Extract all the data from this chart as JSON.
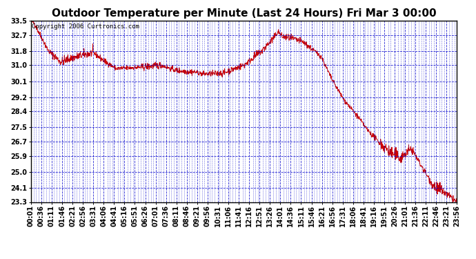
{
  "title": "Outdoor Temperature per Minute (Last 24 Hours) Fri Mar 3 00:00",
  "copyright": "Copyright 2006 Curtronics.com",
  "line_color": "#cc0000",
  "background_color": "#ffffff",
  "plot_bg_color": "#ffffff",
  "grid_color": "#0000cc",
  "border_color": "#000000",
  "y_ticks": [
    23.3,
    24.1,
    25.0,
    25.9,
    26.7,
    27.5,
    28.4,
    29.2,
    30.1,
    31.0,
    31.8,
    32.7,
    33.5
  ],
  "ylim": [
    23.3,
    33.5
  ],
  "x_tick_labels": [
    "00:01",
    "00:36",
    "01:11",
    "01:46",
    "02:21",
    "02:56",
    "03:31",
    "04:06",
    "04:41",
    "05:16",
    "05:51",
    "06:26",
    "07:01",
    "07:36",
    "08:11",
    "08:46",
    "09:21",
    "09:56",
    "10:31",
    "11:06",
    "11:41",
    "12:16",
    "12:51",
    "13:26",
    "14:01",
    "14:36",
    "15:11",
    "15:46",
    "16:21",
    "16:56",
    "17:31",
    "18:06",
    "18:41",
    "19:16",
    "19:51",
    "20:26",
    "21:01",
    "21:36",
    "22:11",
    "22:46",
    "23:21",
    "23:56"
  ],
  "title_fontsize": 11,
  "tick_fontsize": 7,
  "copyright_fontsize": 6.5,
  "figsize": [
    6.9,
    3.75
  ],
  "dpi": 100
}
